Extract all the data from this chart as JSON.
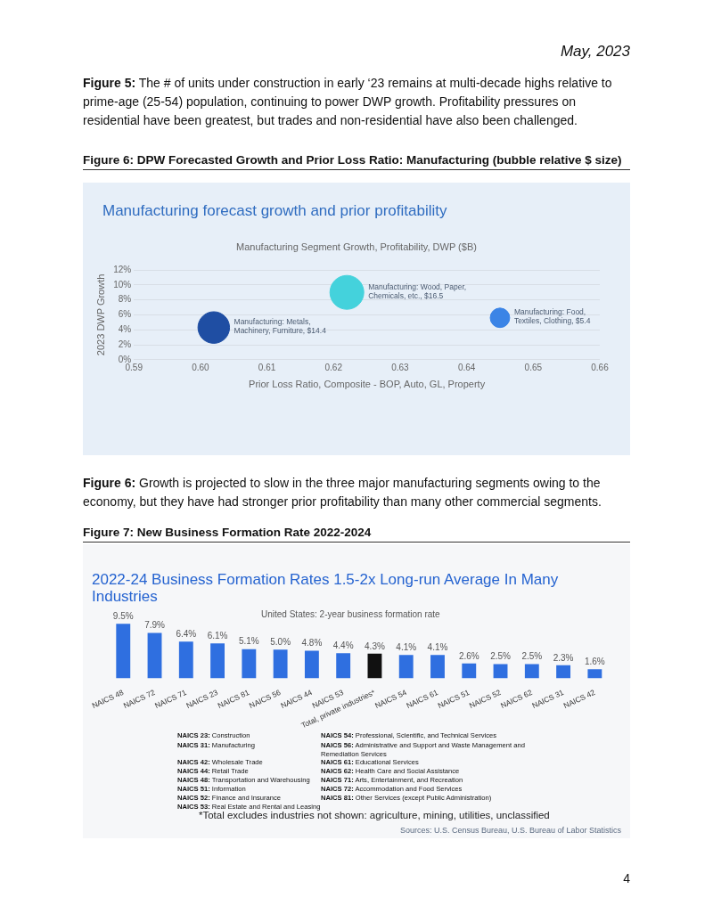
{
  "chart_data": [
    {
      "type": "bubble",
      "title": "Manufacturing forecast growth and prior profitability",
      "subtitle": "Manufacturing Segment Growth, Profitability, DWP ($B)",
      "xlabel": "Prior Loss Ratio, Composite - BOP, Auto, GL, Property",
      "ylabel": "2023 DWP Growth",
      "x": [
        0.602,
        0.622,
        0.645
      ],
      "values": [
        4.3,
        9.0,
        5.6
      ],
      "sizes": [
        0.87,
        1,
        0.33
      ],
      "colors": [
        "#1f4ea3",
        "#44d2dc",
        "#3b84e6"
      ],
      "xlim": [
        0.59,
        0.66
      ],
      "xticks": [
        {
          "value": 0.59,
          "label": "0.59"
        },
        {
          "value": 0.6,
          "label": "0.60"
        },
        {
          "value": 0.61,
          "label": "0.61"
        },
        {
          "value": 0.62,
          "label": "0.62"
        },
        {
          "value": 0.63,
          "label": "0.63"
        },
        {
          "value": 0.64,
          "label": "0.64"
        },
        {
          "value": 0.65,
          "label": "0.65"
        },
        {
          "value": 0.66,
          "label": "0.66"
        }
      ],
      "ylim": [
        0,
        12
      ],
      "yticks": [
        {
          "value": 0,
          "label": "0%"
        },
        {
          "value": 2,
          "label": "2%"
        },
        {
          "value": 4,
          "label": "4%"
        },
        {
          "value": 6,
          "label": "6%"
        },
        {
          "value": 8,
          "label": "8%"
        },
        {
          "value": 10,
          "label": "10%"
        },
        {
          "value": 12,
          "label": "12%"
        }
      ],
      "grid": "y",
      "legend": false,
      "annotations": [
        "May, 2023",
        "Figure 5: The # of units under construction in early ‘23 remains at multi-decade highs relative to prime-age (25-54) population, continuing to power DWP growth. Profitability pressures on residential have been greatest, but trades and non-residential have also been challenged.",
        "Figure 6: DPW Forecasted Growth and Prior Loss Ratio: Manufacturing (bubble relative $ size)",
        {
          "text": "Manufacturing: Metals, Machinery, Furniture, $14.4",
          "x": 0.602,
          "y": 4.3
        },
        {
          "text": "Manufacturing: Wood, Paper, Chemicals, etc., $16.5",
          "x": 0.622,
          "y": 9.0
        },
        {
          "text": "Manufacturing: Food, Textiles, Clothing, $5.4",
          "x": 0.645,
          "y": 5.6
        }
      ]
    },
    {
      "type": "bar",
      "title": "2022-24 Business Formation Rates 1.5-2x Long-run Average In Many Industries",
      "subtitle": "United States: 2-year business formation rate",
      "categories": [
        "NAICS 48",
        "NAICS 72",
        "NAICS 71",
        "NAICS 23",
        "NAICS 81",
        "NAICS 56",
        "NAICS 44",
        "NAICS 53",
        "Total, private industries*",
        "NAICS 54",
        "NAICS 61",
        "NAICS 51",
        "NAICS 52",
        "NAICS 62",
        "NAICS 31",
        "NAICS 42"
      ],
      "values": [
        9.5,
        7.9,
        6.4,
        6.1,
        5.1,
        5.0,
        4.8,
        4.4,
        4.3,
        4.1,
        4.1,
        2.6,
        2.5,
        2.5,
        2.3,
        1.6
      ],
      "value_labels": [
        "9.5%",
        "7.9%",
        "6.4%",
        "6.1%",
        "5.1%",
        "5.0%",
        "4.8%",
        "4.4%",
        "4.3%",
        "4.1%",
        "4.1%",
        "2.6%",
        "2.5%",
        "2.5%",
        "2.3%",
        "1.6%"
      ],
      "colors": [
        "#2f6fe0",
        "#2f6fe0",
        "#2f6fe0",
        "#2f6fe0",
        "#2f6fe0",
        "#2f6fe0",
        "#2f6fe0",
        "#2f6fe0",
        "#111111",
        "#2f6fe0",
        "#2f6fe0",
        "#2f6fe0",
        "#2f6fe0",
        "#2f6fe0",
        "#2f6fe0",
        "#2f6fe0"
      ],
      "tick_labels": "x",
      "legend": false,
      "grid": false,
      "annotations": [
        "Figure 6: Growth is projected to slow in the three major manufacturing segments owing to the economy, but they have had stronger prior profitability than many other commercial segments.",
        "Figure 7: New Business Formation Rate 2022-2024",
        "NAICS 23: Construction",
        "NAICS 31: Manufacturing",
        "NAICS 42: Wholesale Trade",
        "NAICS 44: Retail Trade",
        "NAICS 48: Transportation and Warehousing",
        "NAICS 51: Information",
        "NAICS 52: Finance and Insurance",
        "NAICS 53: Real Estate and Rental and Leasing",
        "NAICS 54: Professional, Scientific, and Technical Services",
        "NAICS 56: Administrative and Support and Waste Management and Remediation Services",
        "NAICS 61: Educational Services",
        "NAICS 62: Health Care and Social Assistance",
        "NAICS 71: Arts, Entertainment, and Recreation",
        "NAICS 72: Accommodation and Food Services",
        "NAICS 81: Other Services (except Public Administration)",
        "*Total excludes industries not shown: agriculture, mining, utilities, unclassified",
        "Sources: U.S. Census Bureau, U.S. Bureau of Labor Statistics",
        "4"
      ]
    }
  ]
}
